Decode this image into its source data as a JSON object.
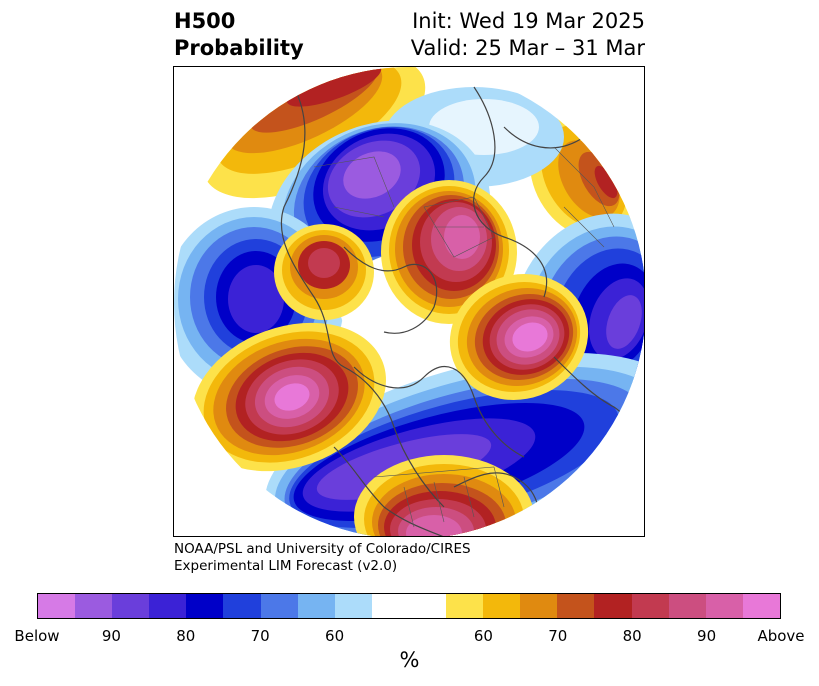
{
  "title": {
    "left_line1": "H500",
    "left_line2": "Probability",
    "right_line1": "Init: Wed 19 Mar 2025",
    "right_line2": "Valid: 25 Mar – 31 Mar"
  },
  "credit": {
    "line1": "NOAA/PSL and University of Colorado/CIRES",
    "line2": "Experimental LIM Forecast (v2.0)"
  },
  "colorbar": {
    "colors": [
      "#d67ae6",
      "#9b5be0",
      "#6a3edb",
      "#3b22d6",
      "#0000c8",
      "#2040dc",
      "#4c78e8",
      "#76b4f2",
      "#acdcfa",
      "#ffffff",
      "#ffffff",
      "#fde24a",
      "#f3b80b",
      "#e08a10",
      "#c4531c",
      "#b22222",
      "#c23a50",
      "#cc4e80",
      "#d860a8",
      "#e878d8"
    ],
    "labels": [
      "Below",
      "90",
      "80",
      "70",
      "60",
      "60",
      "70",
      "80",
      "90",
      "Above"
    ],
    "unit": "%"
  },
  "map": {
    "projection": "north-polar-stereographic",
    "features": [
      "H500 probability shading",
      "coastlines",
      "country borders",
      "state/province borders"
    ]
  }
}
